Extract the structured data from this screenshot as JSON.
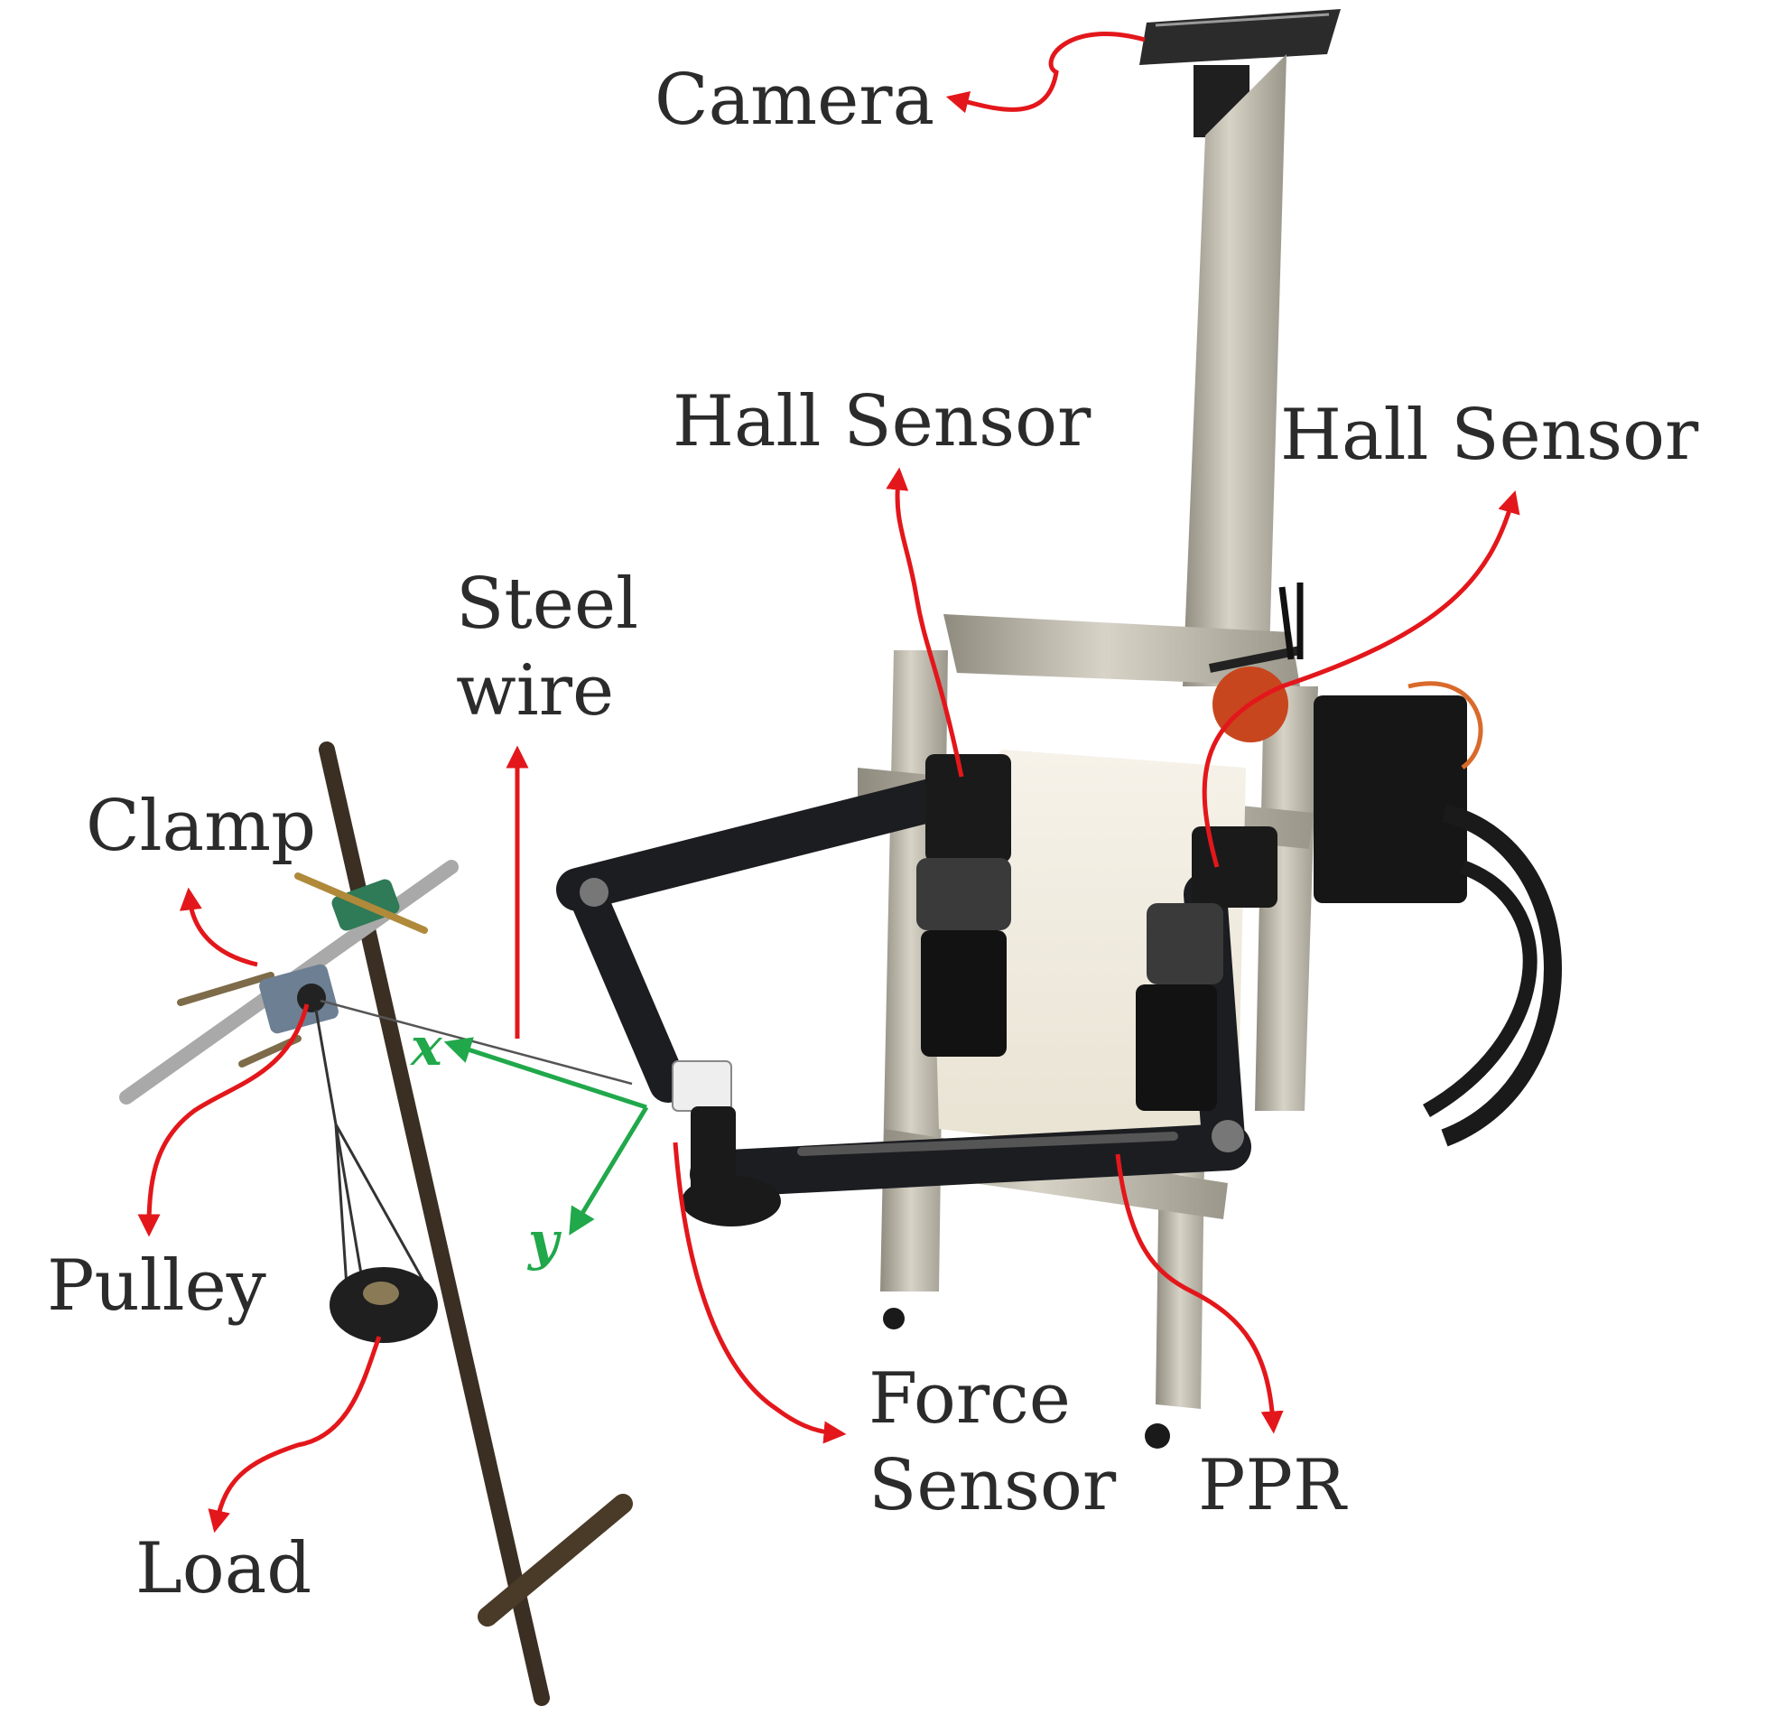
{
  "labels": {
    "camera": "Camera",
    "hall_sensor_left": "Hall Sensor",
    "hall_sensor_right": "Hall Sensor",
    "steel_wire_line1": "Steel",
    "steel_wire_line2": "wire",
    "clamp": "Clamp",
    "pulley": "Pulley",
    "load": "Load",
    "force_sensor_line1": "Force",
    "force_sensor_line2": "Sensor",
    "ppr": "PPR"
  },
  "axes": {
    "x": "x",
    "y": "y"
  },
  "colors": {
    "annotation_arrow": "#e3171b",
    "axis_arrow": "#20a84a",
    "label_text": "#2b2b2b",
    "robot_link": "#1c1d21",
    "frame_aluminium": "#b9b5a8",
    "rod": "#3a2f22"
  }
}
